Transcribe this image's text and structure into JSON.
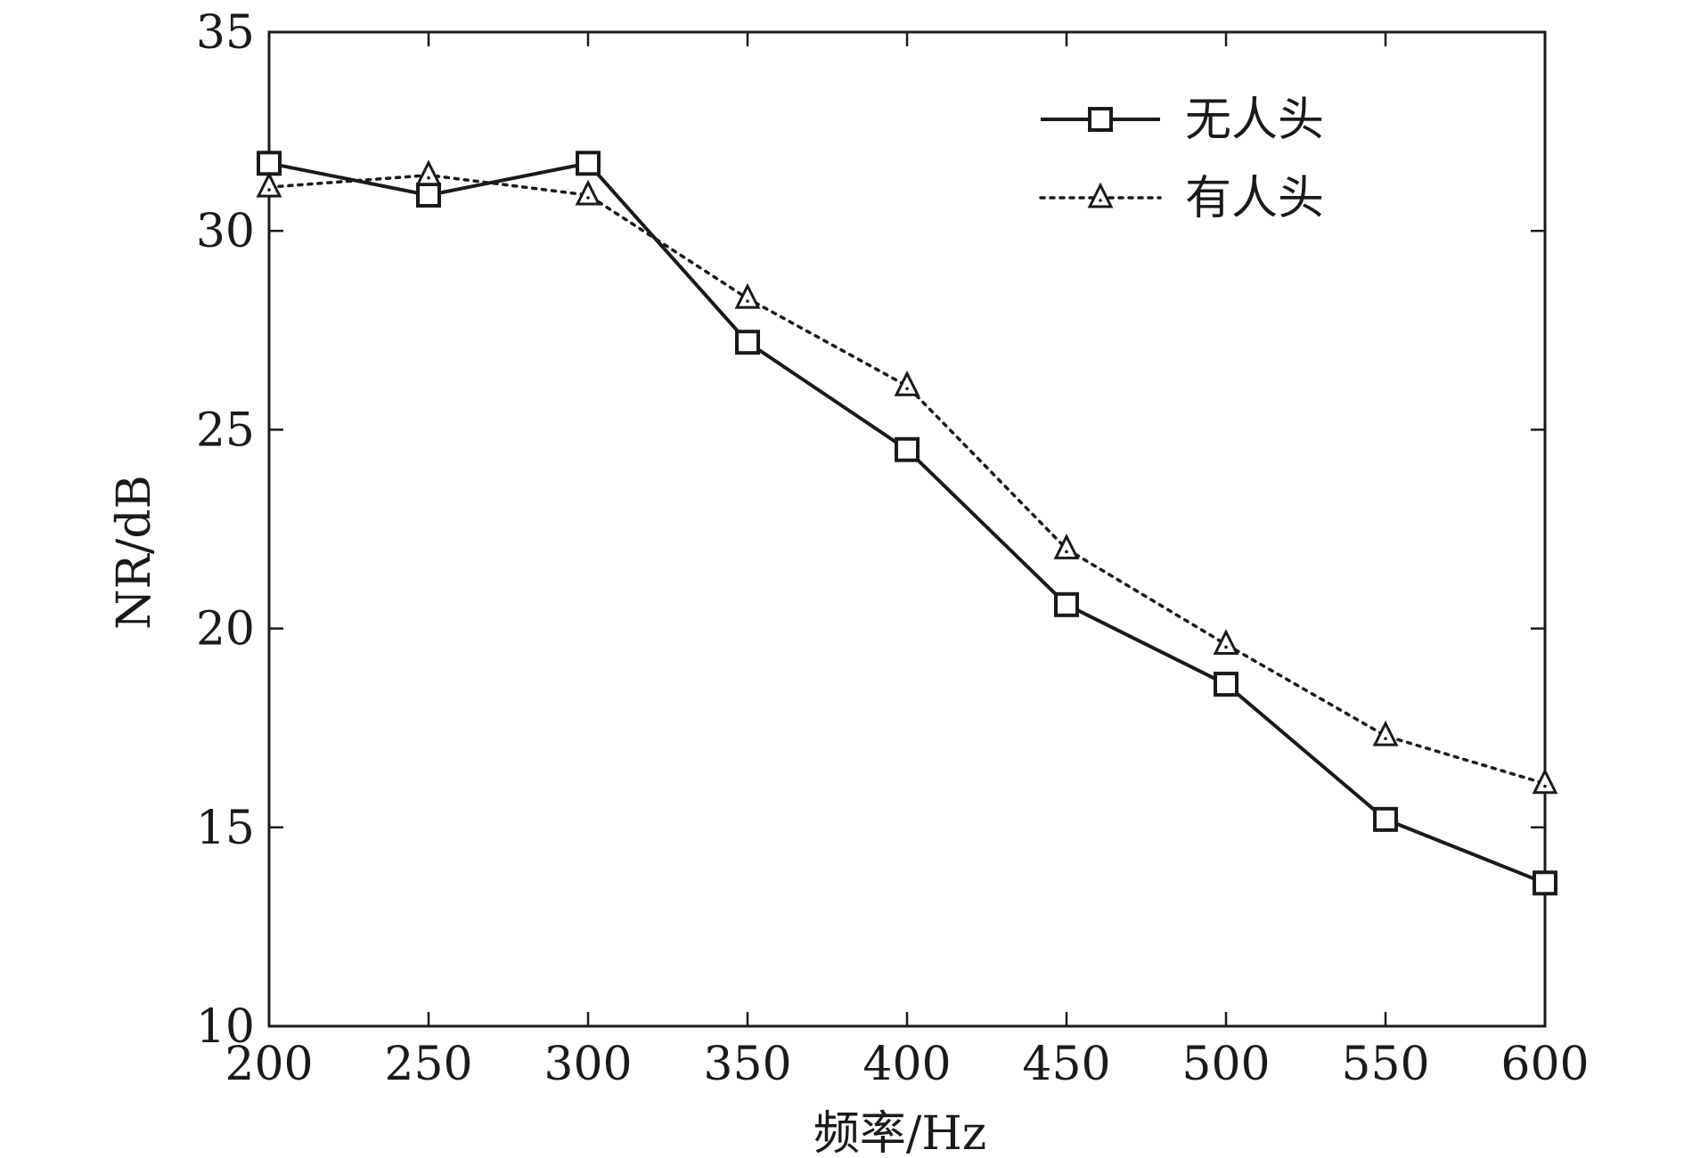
{
  "chart_data": {
    "type": "line",
    "xlabel": "频率/Hz",
    "ylabel": "NR/dB",
    "x": [
      200,
      250,
      300,
      350,
      400,
      450,
      500,
      550,
      600
    ],
    "xlim": [
      200,
      600
    ],
    "ylim": [
      10,
      35
    ],
    "xticks": [
      "200",
      "250",
      "300",
      "350",
      "400",
      "450",
      "500",
      "550",
      "600"
    ],
    "yticks": [
      "10",
      "15",
      "20",
      "25",
      "30",
      "35"
    ],
    "grid": false,
    "legend_position": "top-right",
    "series": [
      {
        "name": "无人头",
        "values": [
          31.7,
          30.9,
          31.7,
          27.2,
          24.5,
          20.6,
          18.6,
          15.2,
          13.6
        ],
        "line_style": "solid",
        "marker": "square",
        "color": "#1a1a1a"
      },
      {
        "name": "有人头",
        "values": [
          31.1,
          31.4,
          30.9,
          28.3,
          26.1,
          22.0,
          19.6,
          17.3,
          16.1
        ],
        "line_style": "dotted",
        "marker": "triangle",
        "color": "#1a1a1a"
      }
    ]
  }
}
